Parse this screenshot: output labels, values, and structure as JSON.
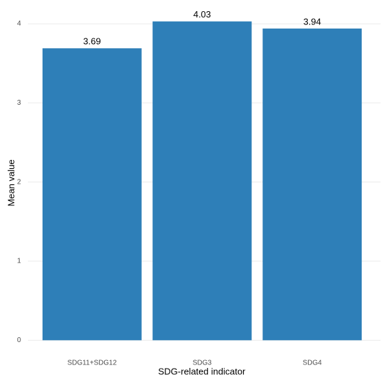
{
  "chart_data": {
    "type": "bar",
    "x_label": "SDG-related indicator",
    "y_label": "Mean value",
    "categories": [
      "SDG11+SDG12",
      "SDG3",
      "SDG4"
    ],
    "values": [
      3.69,
      4.03,
      3.94
    ],
    "color": "#2e7fb8",
    "ylim": [
      -0.2,
      4.23
    ],
    "yticks": [
      0,
      1,
      2,
      3,
      4
    ],
    "grid": true
  }
}
